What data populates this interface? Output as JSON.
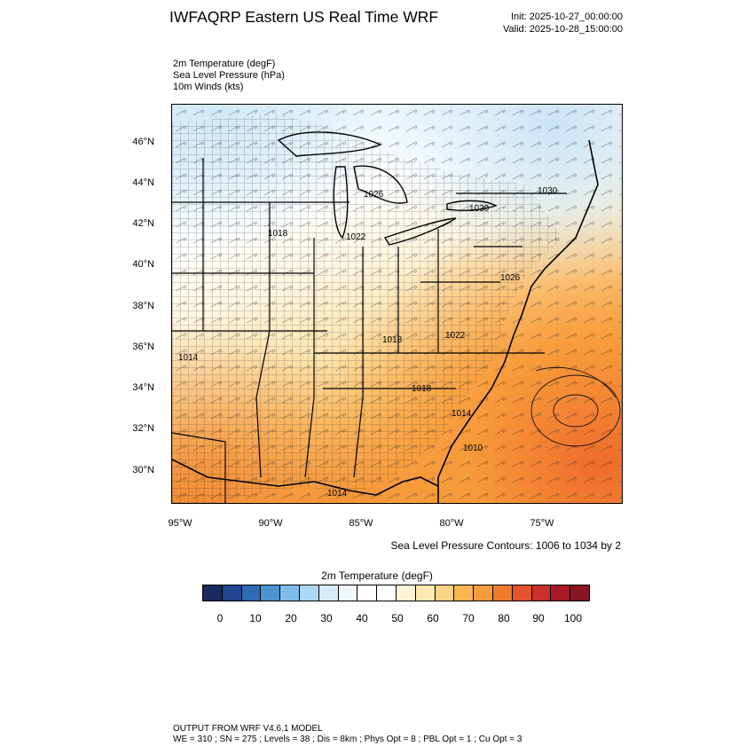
{
  "header": {
    "title": "IWFAQRP Eastern US Real Time WRF",
    "init": "Init: 2025-10-27_00:00:00",
    "valid": "Valid: 2025-10-28_15:00:00"
  },
  "fields": [
    "2m Temperature   (degF)",
    "Sea Level Pressure   (hPa)",
    "10m Winds   (kts)"
  ],
  "map": {
    "lat_labels": [
      "46°N",
      "44°N",
      "42°N",
      "40°N",
      "38°N",
      "36°N",
      "34°N",
      "32°N",
      "30°N"
    ],
    "lon_labels": [
      "95°W",
      "90°W",
      "85°W",
      "80°W",
      "75°W"
    ],
    "pressure_labels": [
      "1026",
      "1030",
      "1030",
      "1018",
      "1022",
      "1026",
      "1018",
      "1022",
      "1014",
      "1018",
      "1014",
      "1010",
      "1014"
    ],
    "contour_note": "Sea Level Pressure Contours: 1006 to 1034 by 2"
  },
  "colorbar": {
    "title": "2m Temperature  (degF)",
    "colors": [
      "#1b2a5e",
      "#22448e",
      "#2f6bb5",
      "#4b93d1",
      "#7fbde8",
      "#acd8f3",
      "#d4ecf8",
      "#f0f7fb",
      "#ffffff",
      "#ffffff",
      "#fff4d6",
      "#fde9b1",
      "#fdd385",
      "#fbb553",
      "#f79a3a",
      "#ef7a2c",
      "#e2542a",
      "#c8312a",
      "#a8192a",
      "#861623"
    ],
    "ticks": [
      "0",
      "10",
      "20",
      "30",
      "40",
      "50",
      "60",
      "70",
      "80",
      "90",
      "100"
    ]
  },
  "footer": {
    "line1": "OUTPUT FROM WRF V4.6.1 MODEL",
    "line2": "WE = 310 ; SN = 275 ; Levels = 38 ; Dis = 8km ; Phys Opt = 8 ; PBL Opt = 1 ; Cu Opt = 3"
  }
}
